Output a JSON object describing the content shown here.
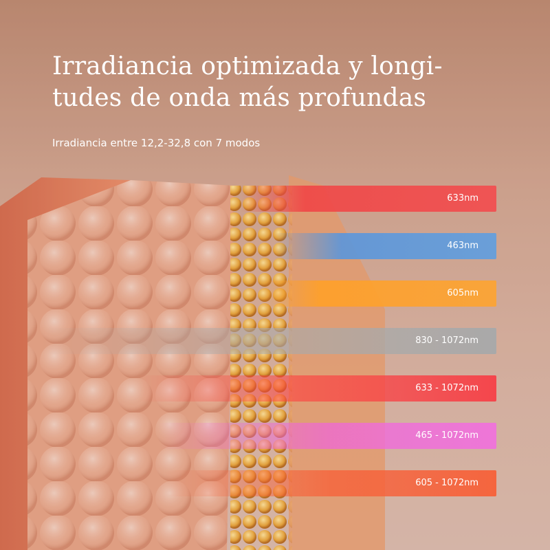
{
  "title": {
    "lines": [
      "Irradiancia optimizada y longi-",
      "tudes de onda más profundas"
    ]
  },
  "subtitle": "Irradiancia entre 12,2-32,8 con 7 modos",
  "bands": [
    {
      "label": "633nm"
    },
    {
      "label": "463nm"
    },
    {
      "label": "605nm"
    },
    {
      "label": "830 - 1072nm"
    },
    {
      "label": "633 - 1072nm"
    },
    {
      "label": "465 - 1072nm"
    },
    {
      "label": "605 - 1072nm"
    }
  ]
}
